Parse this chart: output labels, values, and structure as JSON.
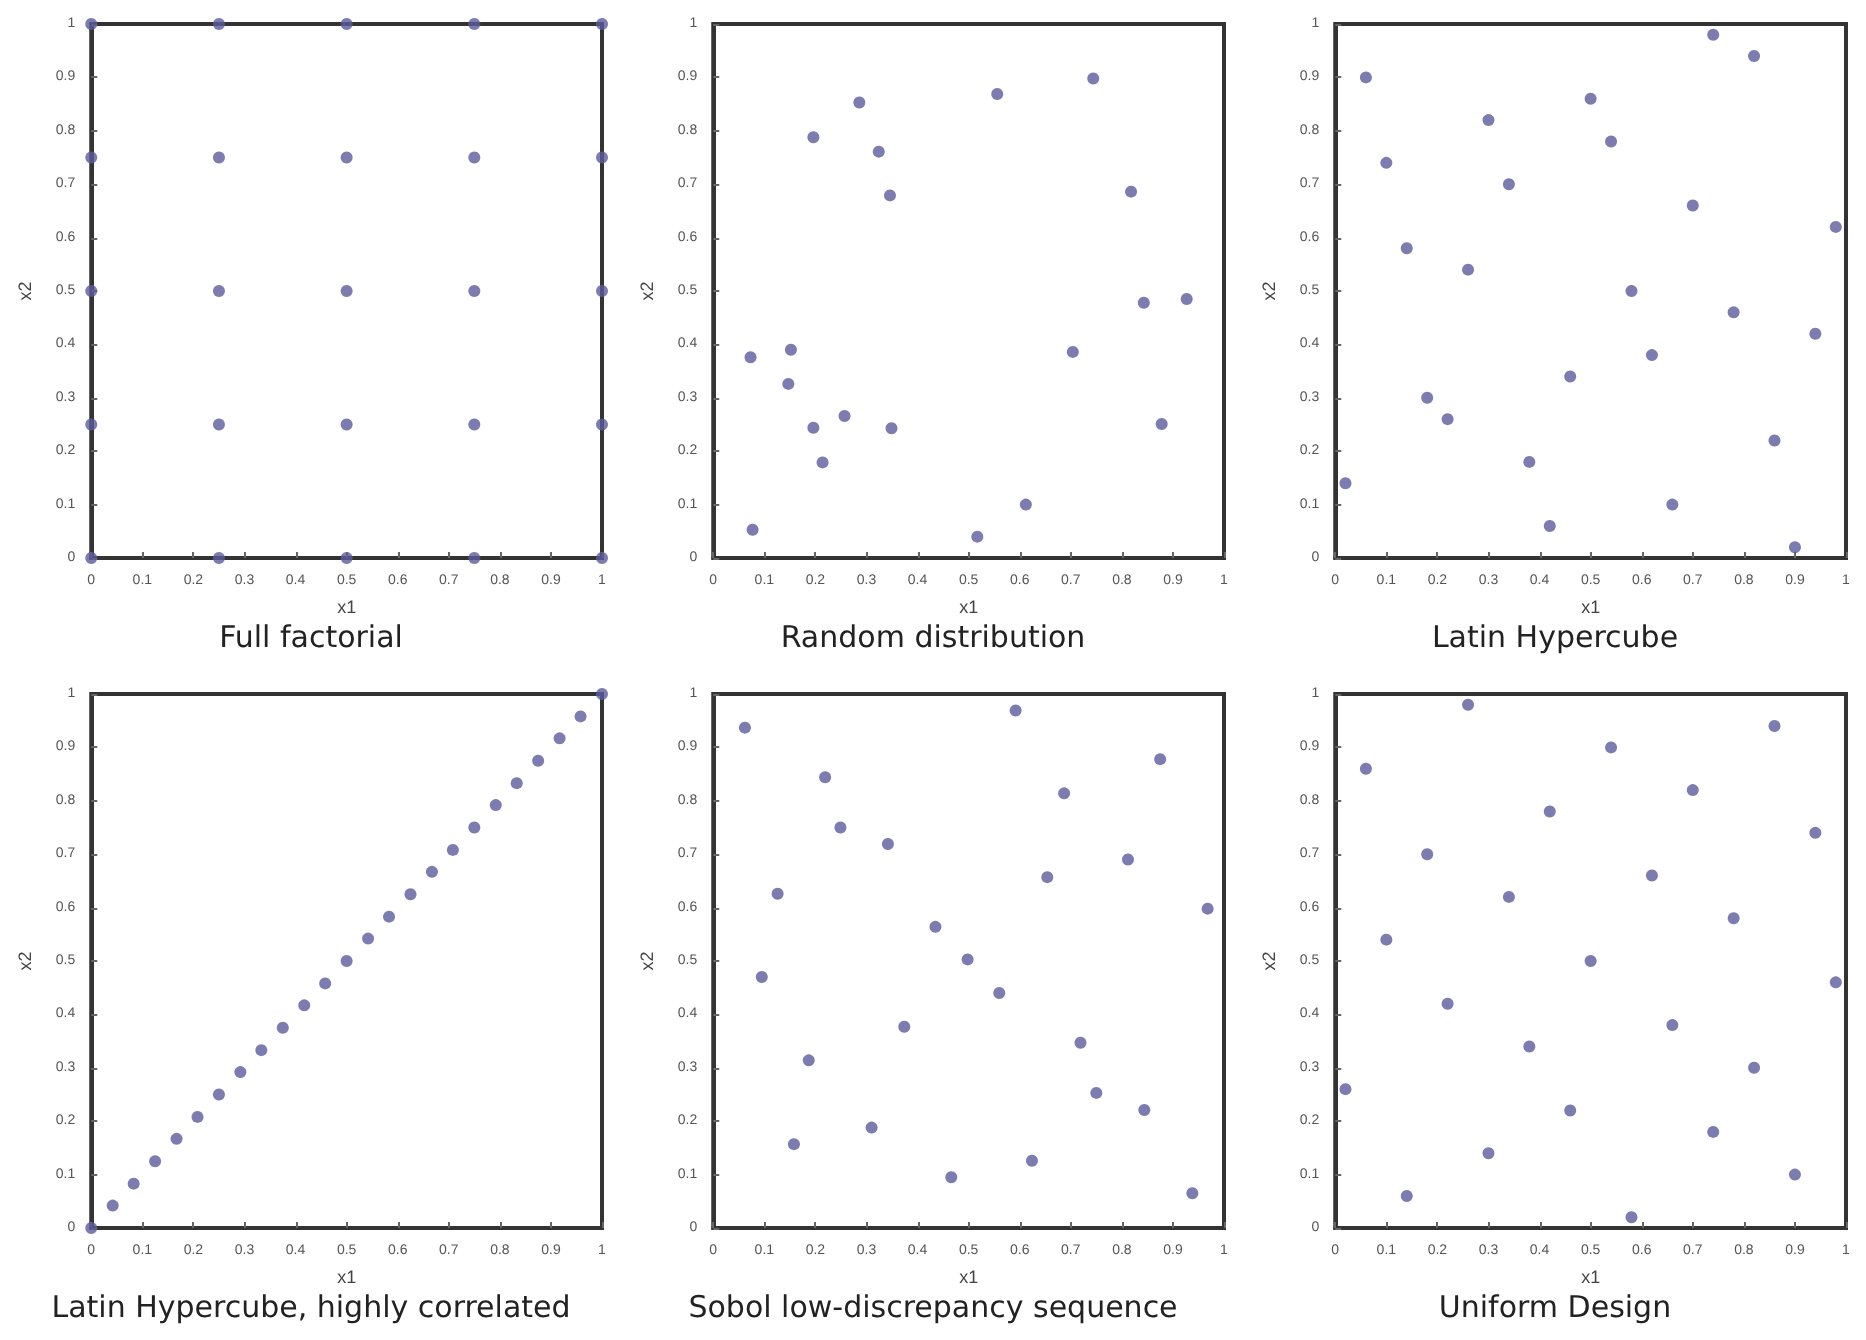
{
  "chart_data": [
    {
      "type": "scatter",
      "title": "Full factorial",
      "xlabel": "x1",
      "ylabel": "x2",
      "xlim": [
        0,
        1
      ],
      "ylim": [
        0,
        1
      ],
      "xticks": [
        0,
        0.1,
        0.2,
        0.3,
        0.4,
        0.5,
        0.6,
        0.7,
        0.8,
        0.9,
        1
      ],
      "yticks": [
        0,
        0.1,
        0.2,
        0.3,
        0.4,
        0.5,
        0.6,
        0.7,
        0.8,
        0.9,
        1
      ],
      "marker": "circle",
      "series": [
        {
          "color": "#5b5b9e",
          "x": [
            0,
            0.25,
            0.5,
            0.75,
            1,
            0,
            0.25,
            0.5,
            0.75,
            1,
            0,
            0.25,
            0.5,
            0.75,
            1,
            0,
            0.25,
            0.5,
            0.75,
            1,
            0,
            0.25,
            0.5,
            0.75,
            1
          ],
          "values": [
            0,
            0,
            0,
            0,
            0,
            0.25,
            0.25,
            0.25,
            0.25,
            0.25,
            0.5,
            0.5,
            0.5,
            0.5,
            0.5,
            0.75,
            0.75,
            0.75,
            0.75,
            0.75,
            1,
            1,
            1,
            1,
            1
          ]
        }
      ]
    },
    {
      "type": "scatter",
      "title": "Random distribution",
      "xlabel": "x1",
      "ylabel": "x2",
      "xlim": [
        0,
        1
      ],
      "ylim": [
        0,
        1
      ],
      "xticks": [
        0,
        0.1,
        0.2,
        0.3,
        0.4,
        0.5,
        0.6,
        0.7,
        0.8,
        0.9,
        1
      ],
      "yticks": [
        0,
        0.1,
        0.2,
        0.3,
        0.4,
        0.5,
        0.6,
        0.7,
        0.8,
        0.9,
        1
      ],
      "marker": "circle",
      "series": [
        {
          "color": "#5b5b9e",
          "x": [
            0.073,
            0.077,
            0.152,
            0.147,
            0.196,
            0.196,
            0.214,
            0.257,
            0.286,
            0.324,
            0.346,
            0.349,
            0.517,
            0.556,
            0.612,
            0.704,
            0.744,
            0.818,
            0.843,
            0.878,
            0.927
          ],
          "values": [
            0.376,
            0.053,
            0.39,
            0.326,
            0.788,
            0.244,
            0.179,
            0.266,
            0.853,
            0.761,
            0.679,
            0.243,
            0.04,
            0.869,
            0.1,
            0.386,
            0.898,
            0.686,
            0.478,
            0.251,
            0.485
          ]
        }
      ]
    },
    {
      "type": "scatter",
      "title": "Latin Hypercube",
      "xlabel": "x1",
      "ylabel": "x2",
      "xlim": [
        0,
        1
      ],
      "ylim": [
        0,
        1
      ],
      "xticks": [
        0,
        0.1,
        0.2,
        0.3,
        0.4,
        0.5,
        0.6,
        0.7,
        0.8,
        0.9,
        1
      ],
      "yticks": [
        0,
        0.1,
        0.2,
        0.3,
        0.4,
        0.5,
        0.6,
        0.7,
        0.8,
        0.9,
        1
      ],
      "marker": "circle",
      "series": [
        {
          "color": "#5b5b9e",
          "x": [
            0.02,
            0.06,
            0.1,
            0.14,
            0.18,
            0.22,
            0.26,
            0.3,
            0.34,
            0.38,
            0.42,
            0.46,
            0.5,
            0.54,
            0.58,
            0.62,
            0.66,
            0.7,
            0.74,
            0.78,
            0.82,
            0.86,
            0.9,
            0.94,
            0.98
          ],
          "values": [
            0.14,
            0.9,
            0.74,
            0.58,
            0.3,
            0.26,
            0.54,
            0.82,
            0.7,
            0.18,
            0.06,
            0.34,
            0.86,
            0.78,
            0.5,
            0.38,
            0.1,
            0.66,
            0.98,
            0.46,
            0.94,
            0.22,
            0.02,
            0.42,
            0.62
          ]
        }
      ]
    },
    {
      "type": "scatter",
      "title": "Latin Hypercube, highly correlated",
      "xlabel": "x1",
      "ylabel": "x2",
      "xlim": [
        0,
        1
      ],
      "ylim": [
        0,
        1
      ],
      "xticks": [
        0,
        0.1,
        0.2,
        0.3,
        0.4,
        0.5,
        0.6,
        0.7,
        0.8,
        0.9,
        1
      ],
      "yticks": [
        0,
        0.1,
        0.2,
        0.3,
        0.4,
        0.5,
        0.6,
        0.7,
        0.8,
        0.9,
        1
      ],
      "marker": "circle",
      "series": [
        {
          "color": "#5b5b9e",
          "x": [
            0,
            0.042,
            0.083,
            0.125,
            0.167,
            0.208,
            0.25,
            0.292,
            0.333,
            0.375,
            0.417,
            0.458,
            0.5,
            0.542,
            0.583,
            0.625,
            0.667,
            0.708,
            0.75,
            0.792,
            0.833,
            0.875,
            0.917,
            0.958,
            1
          ],
          "values": [
            0,
            0.042,
            0.083,
            0.125,
            0.167,
            0.208,
            0.25,
            0.292,
            0.333,
            0.375,
            0.417,
            0.458,
            0.5,
            0.542,
            0.583,
            0.625,
            0.667,
            0.708,
            0.75,
            0.792,
            0.833,
            0.875,
            0.917,
            0.958,
            1
          ]
        }
      ]
    },
    {
      "type": "scatter",
      "title": "Sobol low-discrepancy sequence",
      "xlabel": "x1",
      "ylabel": "x2",
      "xlim": [
        0,
        1
      ],
      "ylim": [
        0,
        1
      ],
      "xticks": [
        0,
        0.1,
        0.2,
        0.3,
        0.4,
        0.5,
        0.6,
        0.7,
        0.8,
        0.9,
        1
      ],
      "yticks": [
        0,
        0.1,
        0.2,
        0.3,
        0.4,
        0.5,
        0.6,
        0.7,
        0.8,
        0.9,
        1
      ],
      "marker": "circle",
      "series": [
        {
          "color": "#5b5b9e",
          "x": [
            0.062,
            0.095,
            0.126,
            0.158,
            0.187,
            0.219,
            0.249,
            0.31,
            0.342,
            0.374,
            0.435,
            0.466,
            0.498,
            0.56,
            0.592,
            0.624,
            0.654,
            0.687,
            0.719,
            0.75,
            0.812,
            0.844,
            0.875,
            0.938,
            0.968
          ],
          "values": [
            0.937,
            0.47,
            0.626,
            0.157,
            0.314,
            0.844,
            0.75,
            0.188,
            0.719,
            0.377,
            0.564,
            0.095,
            0.503,
            0.44,
            0.969,
            0.126,
            0.657,
            0.814,
            0.347,
            0.253,
            0.69,
            0.221,
            0.878,
            0.065,
            0.598
          ]
        }
      ]
    },
    {
      "type": "scatter",
      "title": "Uniform Design",
      "xlabel": "x1",
      "ylabel": "x2",
      "xlim": [
        0,
        1
      ],
      "ylim": [
        0,
        1
      ],
      "xticks": [
        0,
        0.1,
        0.2,
        0.3,
        0.4,
        0.5,
        0.6,
        0.7,
        0.8,
        0.9,
        1
      ],
      "yticks": [
        0,
        0.1,
        0.2,
        0.3,
        0.4,
        0.5,
        0.6,
        0.7,
        0.8,
        0.9,
        1
      ],
      "marker": "circle",
      "series": [
        {
          "color": "#5b5b9e",
          "x": [
            0.02,
            0.06,
            0.1,
            0.14,
            0.18,
            0.22,
            0.26,
            0.3,
            0.34,
            0.38,
            0.42,
            0.46,
            0.5,
            0.54,
            0.58,
            0.62,
            0.66,
            0.7,
            0.74,
            0.78,
            0.82,
            0.86,
            0.9,
            0.94,
            0.98
          ],
          "values": [
            0.26,
            0.86,
            0.54,
            0.06,
            0.7,
            0.42,
            0.98,
            0.14,
            0.62,
            0.34,
            0.78,
            0.22,
            0.5,
            0.9,
            0.02,
            0.66,
            0.38,
            0.82,
            0.18,
            0.58,
            0.3,
            0.94,
            0.1,
            0.74,
            0.46
          ]
        }
      ]
    }
  ]
}
